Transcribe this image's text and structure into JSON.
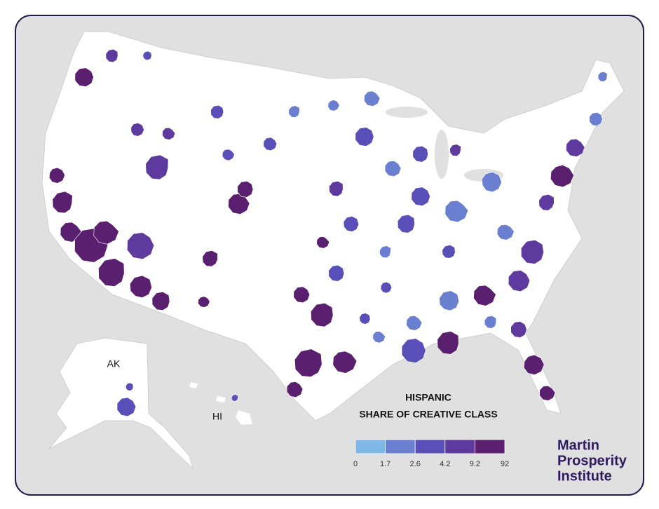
{
  "title": {
    "line1": "HISPANIC",
    "line2": "SHARE OF CREATIVE CLASS"
  },
  "legend": {
    "breaks": [
      0,
      1.7,
      2.6,
      4.2,
      9.2,
      92
    ],
    "colors": [
      "#7fb8e6",
      "#6a7fd0",
      "#5a4fb8",
      "#5e3a9e",
      "#5a1f6e"
    ]
  },
  "map_labels": {
    "alaska": "AK",
    "hawaii": "HI"
  },
  "logo": {
    "line1": "Martin",
    "line2": "Prosperity",
    "line3": "Institute"
  }
}
